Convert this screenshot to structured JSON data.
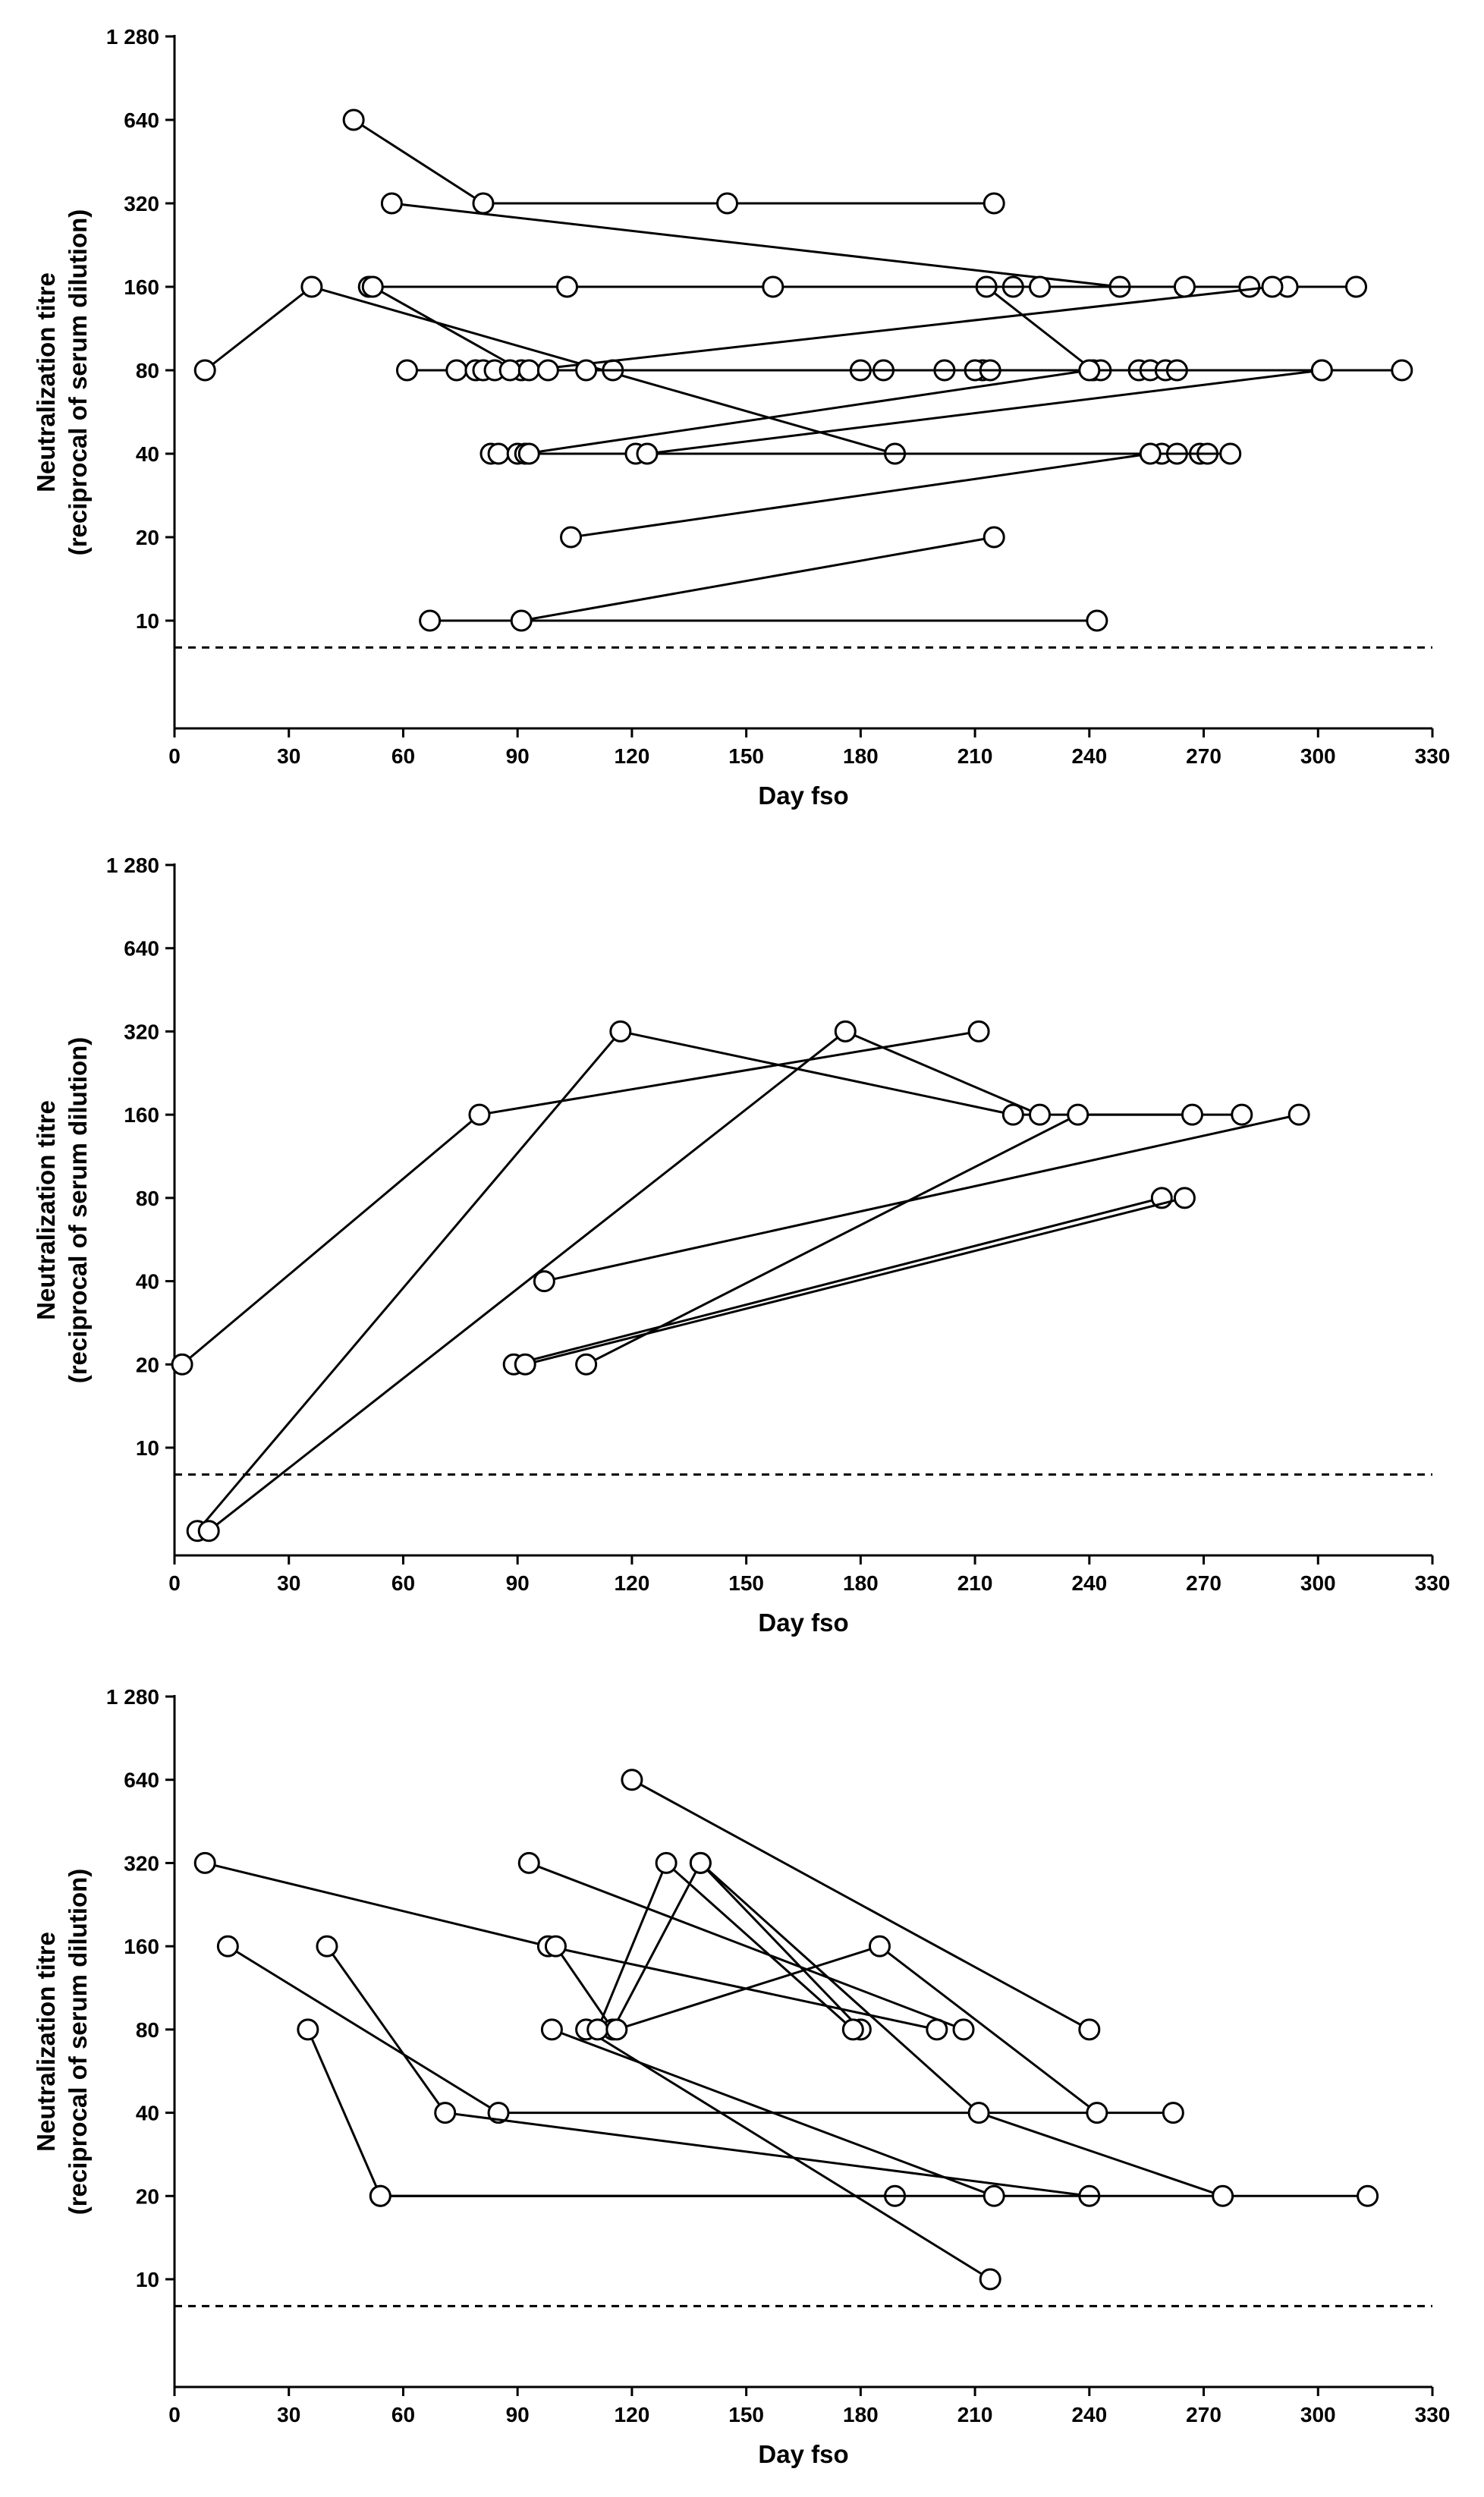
{
  "chart_data": [
    {
      "type": "scatter",
      "title": "",
      "xlabel": "Day fso",
      "ylabel": "Neutralization titre\n(reciprocal of serum dilution)",
      "xlim": [
        0,
        330
      ],
      "x_ticks": [
        0,
        30,
        60,
        90,
        120,
        150,
        180,
        210,
        240,
        270,
        300,
        330
      ],
      "y_scale": "log2",
      "y_ticks": [
        10,
        20,
        40,
        80,
        160,
        320,
        640,
        1280
      ],
      "y_tick_labels": [
        "10",
        "20",
        "40",
        "80",
        "160",
        "320",
        "640",
        "1 280"
      ],
      "threshold_line": 8,
      "below_threshold_value": 5,
      "marker": "open-circle",
      "connected_series": true,
      "series": [
        {
          "x": [
            47,
            81,
            215
          ],
          "y": [
            640,
            320,
            320
          ]
        },
        {
          "x": [
            57,
            248
          ],
          "y": [
            320,
            160
          ]
        },
        {
          "x": [
            145
          ],
          "y": [
            320
          ]
        },
        {
          "x": [
            8,
            36,
            189
          ],
          "y": [
            80,
            160,
            40
          ]
        },
        {
          "x": [
            51,
            220,
            282
          ],
          "y": [
            160,
            160,
            160
          ]
        },
        {
          "x": [
            52,
            91,
            115,
            186
          ],
          "y": [
            160,
            80,
            80,
            80
          ]
        },
        {
          "x": [
            103,
            213,
            241
          ],
          "y": [
            160,
            160,
            80
          ]
        },
        {
          "x": [
            157,
            227,
            265
          ],
          "y": [
            160,
            160,
            160
          ]
        },
        {
          "x": [
            292,
            310
          ],
          "y": [
            160,
            160
          ]
        },
        {
          "x": [
            61,
            212,
            322
          ],
          "y": [
            80,
            80,
            80
          ]
        },
        {
          "x": [
            74,
            202,
            253
          ],
          "y": [
            80,
            80,
            80
          ]
        },
        {
          "x": [
            79,
            180
          ],
          "y": [
            80,
            80
          ]
        },
        {
          "x": [
            81,
            210,
            256
          ],
          "y": [
            80,
            80,
            80
          ]
        },
        {
          "x": [
            84,
            214,
            243
          ],
          "y": [
            80,
            80,
            80
          ]
        },
        {
          "x": [
            88,
            260,
            263
          ],
          "y": [
            80,
            80,
            80
          ]
        },
        {
          "x": [
            93,
            288
          ],
          "y": [
            80,
            160
          ]
        },
        {
          "x": [
            98,
            301
          ],
          "y": [
            80,
            80
          ]
        },
        {
          "x": [
            108
          ],
          "y": [
            80
          ]
        },
        {
          "x": [
            83,
            259
          ],
          "y": [
            40,
            40
          ]
        },
        {
          "x": [
            85,
            263
          ],
          "y": [
            40,
            40
          ]
        },
        {
          "x": [
            90,
            269
          ],
          "y": [
            40,
            40
          ]
        },
        {
          "x": [
            92,
            240
          ],
          "y": [
            40,
            80
          ]
        },
        {
          "x": [
            93,
            271
          ],
          "y": [
            40,
            40
          ]
        },
        {
          "x": [
            121,
            277
          ],
          "y": [
            40,
            40
          ]
        },
        {
          "x": [
            124,
            301
          ],
          "y": [
            40,
            80
          ]
        },
        {
          "x": [
            104,
            256
          ],
          "y": [
            20,
            40
          ]
        },
        {
          "x": [
            67,
            242
          ],
          "y": [
            10,
            10
          ]
        },
        {
          "x": [
            91,
            215
          ],
          "y": [
            10,
            20
          ]
        }
      ]
    },
    {
      "type": "scatter",
      "title": "",
      "xlabel": "Day fso",
      "ylabel": "Neutralization titre\n(reciprocal of serum dilution)",
      "xlim": [
        0,
        330
      ],
      "x_ticks": [
        0,
        30,
        60,
        90,
        120,
        150,
        180,
        210,
        240,
        270,
        300,
        330
      ],
      "y_scale": "log2",
      "y_ticks": [
        10,
        20,
        40,
        80,
        160,
        320,
        640,
        1280
      ],
      "y_tick_labels": [
        "10",
        "20",
        "40",
        "80",
        "160",
        "320",
        "640",
        "1 280"
      ],
      "threshold_line": 8,
      "below_threshold_value": 5,
      "marker": "open-circle",
      "connected_series": true,
      "series": [
        {
          "x": [
            2,
            80,
            211
          ],
          "y": [
            20,
            160,
            320
          ]
        },
        {
          "x": [
            6,
            117,
            220,
            280
          ],
          "y": [
            5,
            320,
            160,
            160
          ]
        },
        {
          "x": [
            9,
            176,
            227
          ],
          "y": [
            5,
            320,
            160
          ]
        },
        {
          "x": [
            89,
            259
          ],
          "y": [
            20,
            80
          ]
        },
        {
          "x": [
            92,
            265
          ],
          "y": [
            20,
            80
          ]
        },
        {
          "x": [
            97,
            295
          ],
          "y": [
            40,
            160
          ]
        },
        {
          "x": [
            108,
            237,
            267
          ],
          "y": [
            20,
            160,
            160
          ]
        }
      ]
    },
    {
      "type": "scatter",
      "title": "",
      "xlabel": "Day fso",
      "ylabel": "Neutralization titre\n(reciprocal of serum dilution)",
      "xlim": [
        0,
        330
      ],
      "x_ticks": [
        0,
        30,
        60,
        90,
        120,
        150,
        180,
        210,
        240,
        270,
        300,
        330
      ],
      "y_scale": "log2",
      "y_ticks": [
        10,
        20,
        40,
        80,
        160,
        320,
        640,
        1280
      ],
      "y_tick_labels": [
        "10",
        "20",
        "40",
        "80",
        "160",
        "320",
        "640",
        "1 280"
      ],
      "threshold_line": 8,
      "marker": "open-circle",
      "connected_series": true,
      "series": [
        {
          "x": [
            8,
            98,
            200
          ],
          "y": [
            320,
            160,
            80
          ]
        },
        {
          "x": [
            14,
            85,
            262
          ],
          "y": [
            160,
            40,
            40
          ]
        },
        {
          "x": [
            35,
            54,
            189
          ],
          "y": [
            80,
            20,
            20
          ]
        },
        {
          "x": [
            40,
            71,
            240
          ],
          "y": [
            160,
            40,
            20
          ]
        },
        {
          "x": [
            54,
            313
          ],
          "y": [
            20,
            20
          ]
        },
        {
          "x": [
            93,
            207
          ],
          "y": [
            320,
            80
          ]
        },
        {
          "x": [
            100,
            115,
            138,
            180
          ],
          "y": [
            160,
            80,
            320,
            80
          ]
        },
        {
          "x": [
            99,
            215
          ],
          "y": [
            80,
            20
          ]
        },
        {
          "x": [
            108,
            214
          ],
          "y": [
            80,
            10
          ]
        },
        {
          "x": [
            111,
            129,
            178
          ],
          "y": [
            80,
            320,
            80
          ]
        },
        {
          "x": [
            116,
            185,
            242
          ],
          "y": [
            80,
            160,
            40
          ]
        },
        {
          "x": [
            120,
            240
          ],
          "y": [
            640,
            80
          ]
        },
        {
          "x": [
            138,
            211,
            275
          ],
          "y": [
            320,
            40,
            20
          ]
        }
      ]
    }
  ]
}
